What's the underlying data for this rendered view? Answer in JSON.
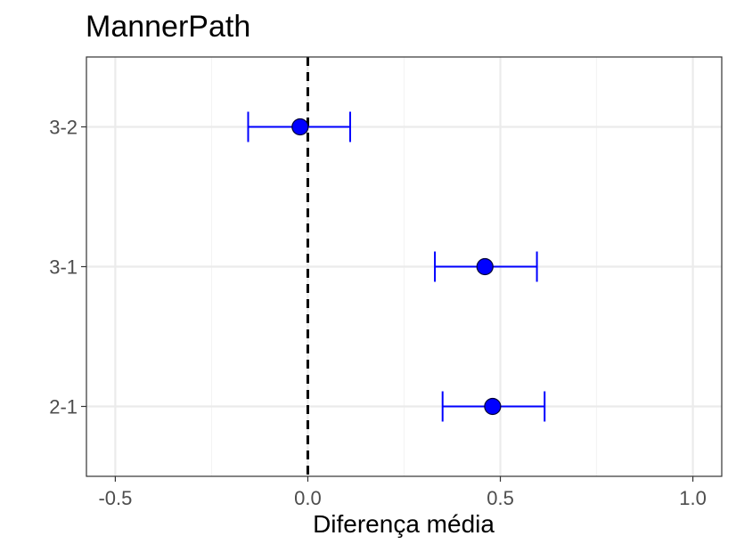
{
  "chart_data": {
    "type": "scatter",
    "title": "MannerPath",
    "xlabel": "Diferença média",
    "ylabel": "",
    "xlim": [
      -0.575,
      1.075
    ],
    "x_ticks": [
      -0.5,
      0.0,
      0.5,
      1.0
    ],
    "x_tick_labels": [
      "-0.5",
      "0.0",
      "0.5",
      "1.0"
    ],
    "categories": [
      "3-2",
      "3-1",
      "2-1"
    ],
    "series": [
      {
        "estimates": [
          -0.02,
          0.46,
          0.48
        ],
        "lower": [
          -0.155,
          0.33,
          0.35
        ],
        "upper": [
          0.11,
          0.595,
          0.615
        ]
      }
    ],
    "reference_line": {
      "x": 0,
      "style": "dashed",
      "color": "#000000"
    },
    "grid": true,
    "colors": {
      "point_fill": "#0000ff",
      "point_stroke": "#000033",
      "errorbar": "#0000ff",
      "grid_major": "#ebebeb",
      "grid_minor": "#f4f4f4",
      "panel_border": "#333333"
    }
  }
}
